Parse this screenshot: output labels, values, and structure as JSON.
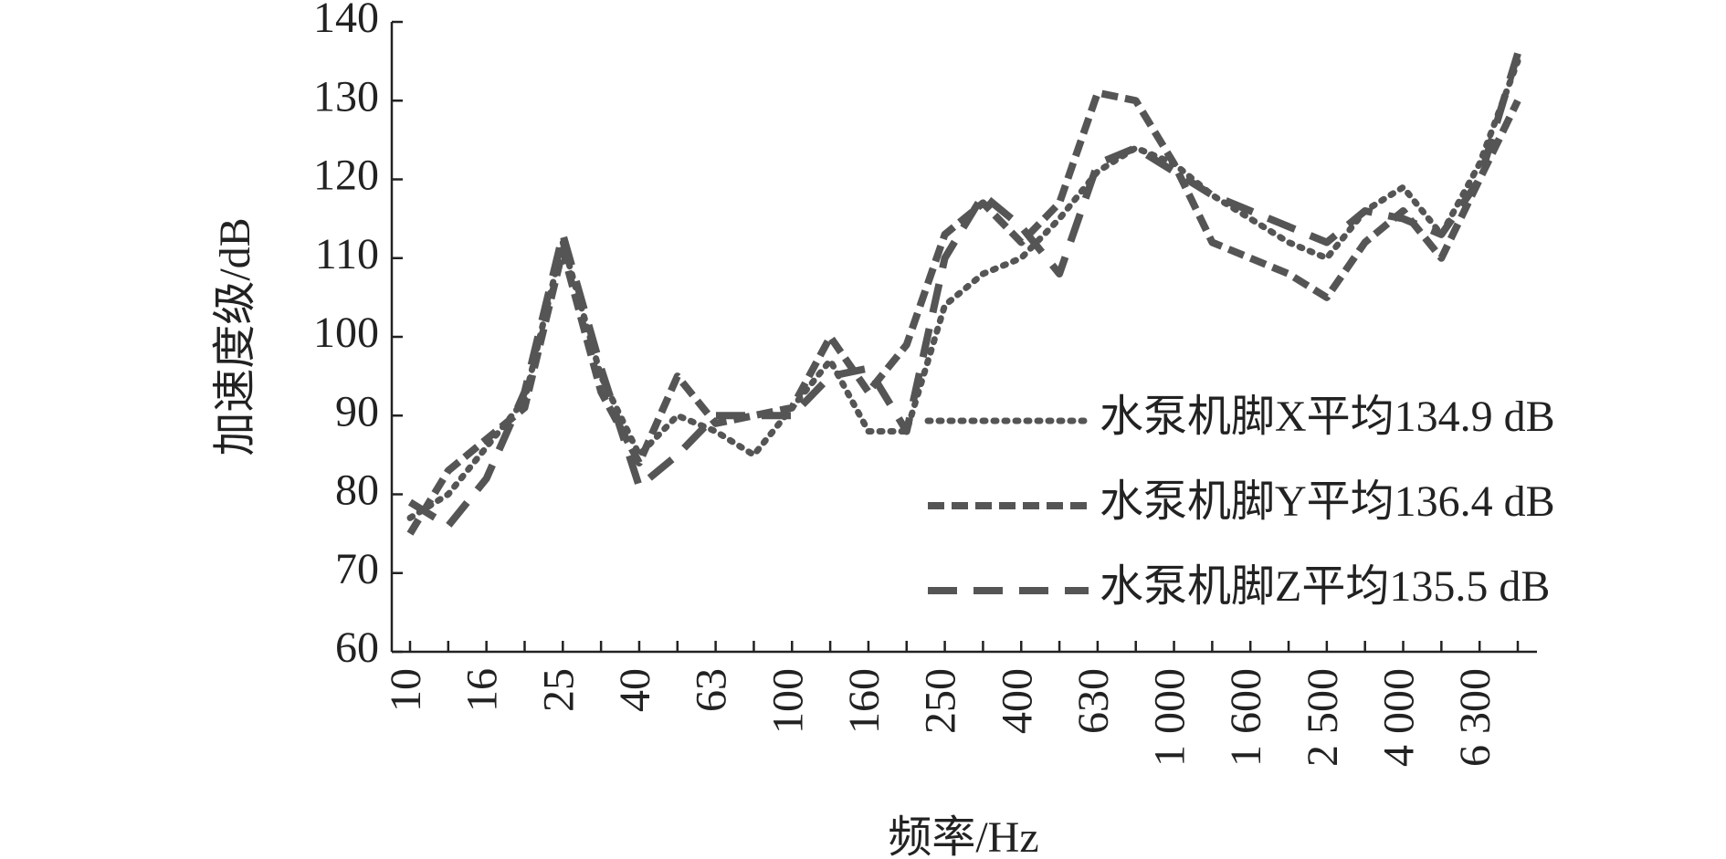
{
  "chart_data": {
    "type": "line",
    "xlabel": "频率/Hz",
    "ylabel": "加速度级/dB",
    "categories": [
      "10",
      null,
      "16",
      null,
      "25",
      null,
      "40",
      null,
      "63",
      null,
      "100",
      null,
      "160",
      null,
      "250",
      null,
      "400",
      null,
      "630",
      null,
      "1 000",
      null,
      "1 600",
      null,
      "2 500",
      null,
      "4 000",
      null,
      "6 300",
      null
    ],
    "series": [
      {
        "name": "水泵机脚X平均134.9 dB",
        "color": "#555555",
        "dash": "dotted",
        "values": [
          77,
          80,
          86,
          92,
          112,
          95,
          85,
          90,
          88,
          85,
          91,
          97,
          88,
          88,
          104,
          108,
          110,
          115,
          121,
          124,
          122,
          118,
          115,
          112,
          110,
          116,
          119,
          113,
          122,
          135
        ]
      },
      {
        "name": "水泵机脚Y平均136.4 dB",
        "color": "#555555",
        "dash": "short",
        "values": [
          75,
          83,
          87,
          91,
          111,
          93,
          84,
          95,
          89,
          90,
          91,
          100,
          93,
          99,
          113,
          117,
          112,
          117,
          131,
          130,
          122,
          112,
          110,
          108,
          105,
          112,
          116,
          110,
          120,
          130
        ]
      },
      {
        "name": "水泵机脚Z平均135.5 dB",
        "color": "#555555",
        "dash": "long",
        "values": [
          79,
          76,
          82,
          93,
          113,
          96,
          81,
          85,
          90,
          90,
          90,
          95,
          96,
          88,
          110,
          118,
          114,
          108,
          122,
          124,
          121,
          118,
          116,
          114,
          112,
          116,
          115,
          113,
          120,
          136
        ]
      }
    ],
    "ylim": [
      60,
      140
    ],
    "yticks": [
      60,
      70,
      80,
      90,
      100,
      110,
      120,
      130,
      140
    ],
    "grid": false
  }
}
